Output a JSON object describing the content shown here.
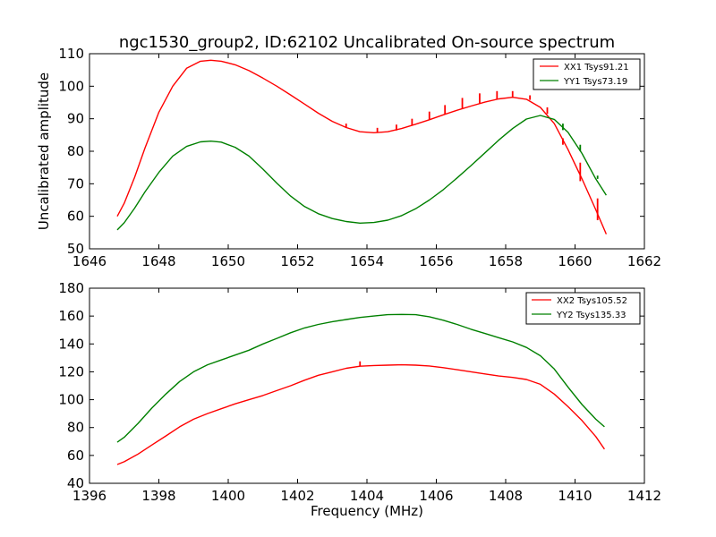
{
  "title": "ngc1530_group2, ID:62102 Uncalibrated On-source spectrum",
  "colors": {
    "xx": "#ff0000",
    "yy": "#008000",
    "axes": "#000000",
    "background": "#ffffff"
  },
  "chart_data": [
    {
      "type": "line",
      "panel": "top",
      "title": "ngc1530_group2, ID:62102 Uncalibrated On-source spectrum",
      "xlabel": "",
      "ylabel": "Uncalibrated amplitude",
      "xlim": [
        1646,
        1662
      ],
      "ylim": [
        50,
        110
      ],
      "xticks": [
        1646,
        1648,
        1650,
        1652,
        1654,
        1656,
        1658,
        1660,
        1662
      ],
      "yticks": [
        50,
        60,
        70,
        80,
        90,
        100,
        110
      ],
      "xtick_labels": [
        "1646",
        "1648",
        "1650",
        "1652",
        "1654",
        "1656",
        "1658",
        "1660",
        "1662"
      ],
      "ytick_labels": [
        "50",
        "60",
        "70",
        "80",
        "90",
        "100",
        "110"
      ],
      "grid": false,
      "legend_position": "top-right",
      "series": [
        {
          "name": "XX1 Tsys91.21",
          "color": "#ff0000",
          "x": [
            1646.8,
            1647.0,
            1647.3,
            1647.6,
            1648.0,
            1648.4,
            1648.8,
            1649.2,
            1649.5,
            1649.8,
            1650.2,
            1650.6,
            1651.0,
            1651.4,
            1651.8,
            1652.2,
            1652.6,
            1653.0,
            1653.4,
            1653.8,
            1654.2,
            1654.6,
            1655.0,
            1655.4,
            1655.8,
            1656.2,
            1656.6,
            1657.0,
            1657.4,
            1657.8,
            1658.2,
            1658.6,
            1659.0,
            1659.4,
            1659.8,
            1660.2,
            1660.6,
            1660.9
          ],
          "values": [
            60,
            64,
            72,
            81,
            92,
            100,
            105.5,
            107.7,
            108,
            107.7,
            106.6,
            104.8,
            102.5,
            100,
            97.3,
            94.5,
            91.7,
            89.2,
            87.3,
            86,
            85.7,
            86,
            87,
            88.3,
            89.7,
            91.2,
            92.6,
            93.9,
            95.1,
            96.1,
            96.6,
            96,
            93.5,
            88.5,
            80.5,
            71.5,
            62,
            54.5
          ]
        },
        {
          "name": "YY1 Tsys73.19",
          "color": "#008000",
          "x": [
            1646.8,
            1647.0,
            1647.3,
            1647.6,
            1648.0,
            1648.4,
            1648.8,
            1649.2,
            1649.5,
            1649.8,
            1650.2,
            1650.6,
            1651.0,
            1651.4,
            1651.8,
            1652.2,
            1652.6,
            1653.0,
            1653.4,
            1653.8,
            1654.2,
            1654.6,
            1655.0,
            1655.4,
            1655.8,
            1656.2,
            1656.6,
            1657.0,
            1657.4,
            1657.8,
            1658.2,
            1658.6,
            1659.0,
            1659.4,
            1659.8,
            1660.2,
            1660.6,
            1660.9
          ],
          "values": [
            55.8,
            58,
            62.5,
            67.5,
            73.5,
            78.5,
            81.5,
            82.9,
            83.1,
            82.8,
            81.2,
            78.5,
            74.5,
            70.2,
            66.2,
            63,
            60.8,
            59.3,
            58.4,
            57.9,
            58.1,
            58.8,
            60.2,
            62.3,
            65,
            68.2,
            71.8,
            75.6,
            79.5,
            83.4,
            87,
            89.9,
            91,
            89.8,
            85.8,
            79.3,
            71.5,
            66.5
          ]
        }
      ],
      "spikes": [
        {
          "series": "XX1 Tsys91.21",
          "x": 1653.4,
          "y_from": 87.3,
          "y_to": 88.5
        },
        {
          "series": "XX1 Tsys91.21",
          "x": 1654.3,
          "y_from": 85.7,
          "y_to": 87.2
        },
        {
          "series": "XX1 Tsys91.21",
          "x": 1654.85,
          "y_from": 86.4,
          "y_to": 88.2
        },
        {
          "series": "XX1 Tsys91.21",
          "x": 1655.3,
          "y_from": 88,
          "y_to": 90
        },
        {
          "series": "XX1 Tsys91.21",
          "x": 1655.8,
          "y_from": 89.7,
          "y_to": 92.2
        },
        {
          "series": "XX1 Tsys91.21",
          "x": 1656.25,
          "y_from": 91.3,
          "y_to": 94.2
        },
        {
          "series": "XX1 Tsys91.21",
          "x": 1656.75,
          "y_from": 93.1,
          "y_to": 96.4
        },
        {
          "series": "XX1 Tsys91.21",
          "x": 1657.25,
          "y_from": 94.7,
          "y_to": 97.8
        },
        {
          "series": "XX1 Tsys91.21",
          "x": 1657.75,
          "y_from": 96,
          "y_to": 98.5
        },
        {
          "series": "XX1 Tsys91.21",
          "x": 1658.2,
          "y_from": 96.6,
          "y_to": 98.5
        },
        {
          "series": "XX1 Tsys91.21",
          "x": 1658.7,
          "y_from": 95.8,
          "y_to": 97.2
        },
        {
          "series": "XX1 Tsys91.21",
          "x": 1659.2,
          "y_from": 91.5,
          "y_to": 93.5
        },
        {
          "series": "XX1 Tsys91.21",
          "x": 1659.65,
          "y_from": 84,
          "y_to": 82
        },
        {
          "series": "XX1 Tsys91.21",
          "x": 1660.15,
          "y_from": 76.5,
          "y_to": 70.8
        },
        {
          "series": "XX1 Tsys91.21",
          "x": 1660.65,
          "y_from": 65.5,
          "y_to": 58.8
        },
        {
          "series": "YY1 Tsys73.19",
          "x": 1659.65,
          "y_from": 86.5,
          "y_to": 88.5
        },
        {
          "series": "YY1 Tsys73.19",
          "x": 1660.15,
          "y_from": 80,
          "y_to": 82
        },
        {
          "series": "YY1 Tsys73.19",
          "x": 1660.65,
          "y_from": 71.5,
          "y_to": 72.5
        }
      ]
    },
    {
      "type": "line",
      "panel": "bottom",
      "title": "",
      "xlabel": "Frequency (MHz)",
      "ylabel": "",
      "xlim": [
        1396,
        1412
      ],
      "ylim": [
        40,
        180
      ],
      "xticks": [
        1396,
        1398,
        1400,
        1402,
        1404,
        1406,
        1408,
        1410,
        1412
      ],
      "yticks": [
        40,
        60,
        80,
        100,
        120,
        140,
        160,
        180
      ],
      "xtick_labels": [
        "1396",
        "1398",
        "1400",
        "1402",
        "1404",
        "1406",
        "1408",
        "1410",
        "1412"
      ],
      "ytick_labels": [
        "40",
        "60",
        "80",
        "100",
        "120",
        "140",
        "160",
        "180"
      ],
      "grid": false,
      "legend_position": "top-right",
      "series": [
        {
          "name": "XX2 Tsys105.52",
          "color": "#ff0000",
          "x": [
            1396.8,
            1397.0,
            1397.4,
            1397.8,
            1398.2,
            1398.6,
            1399.0,
            1399.4,
            1399.8,
            1400.2,
            1400.6,
            1401.0,
            1401.4,
            1401.8,
            1402.2,
            1402.6,
            1403.0,
            1403.4,
            1403.8,
            1404.2,
            1404.6,
            1405.0,
            1405.4,
            1405.8,
            1406.2,
            1406.6,
            1407.0,
            1407.4,
            1407.8,
            1408.2,
            1408.6,
            1409.0,
            1409.4,
            1409.8,
            1410.2,
            1410.6,
            1410.85
          ],
          "values": [
            53.5,
            55.5,
            61,
            67.5,
            74,
            80.5,
            86,
            90,
            93.5,
            97,
            100,
            103,
            106.5,
            110,
            114,
            117.5,
            120,
            122.5,
            124,
            124.5,
            124.8,
            125,
            124.8,
            124.2,
            123,
            121.5,
            120,
            118.5,
            117,
            116,
            114.5,
            111,
            104,
            95,
            85,
            73.5,
            64.5
          ]
        },
        {
          "name": "YY2 Tsys135.33",
          "color": "#008000",
          "x": [
            1396.8,
            1397.0,
            1397.4,
            1397.8,
            1398.2,
            1398.6,
            1399.0,
            1399.4,
            1399.8,
            1400.2,
            1400.6,
            1401.0,
            1401.4,
            1401.8,
            1402.2,
            1402.6,
            1403.0,
            1403.4,
            1403.8,
            1404.2,
            1404.6,
            1405.0,
            1405.4,
            1405.8,
            1406.2,
            1406.6,
            1407.0,
            1407.4,
            1407.8,
            1408.2,
            1408.6,
            1409.0,
            1409.4,
            1409.8,
            1410.2,
            1410.6,
            1410.85
          ],
          "values": [
            69.5,
            73,
            83,
            94,
            104,
            113,
            120,
            125,
            128.5,
            132,
            135.5,
            140,
            144,
            148,
            151.5,
            154,
            156,
            157.5,
            159,
            160,
            161,
            161.2,
            161,
            159.5,
            157,
            154,
            150.5,
            147.5,
            144.5,
            141.5,
            137.5,
            131.5,
            122,
            109,
            96.5,
            86,
            80.5
          ]
        }
      ],
      "spikes": [
        {
          "series": "XX2 Tsys105.52",
          "x": 1403.8,
          "y_from": 124,
          "y_to": 127.5
        }
      ]
    }
  ]
}
